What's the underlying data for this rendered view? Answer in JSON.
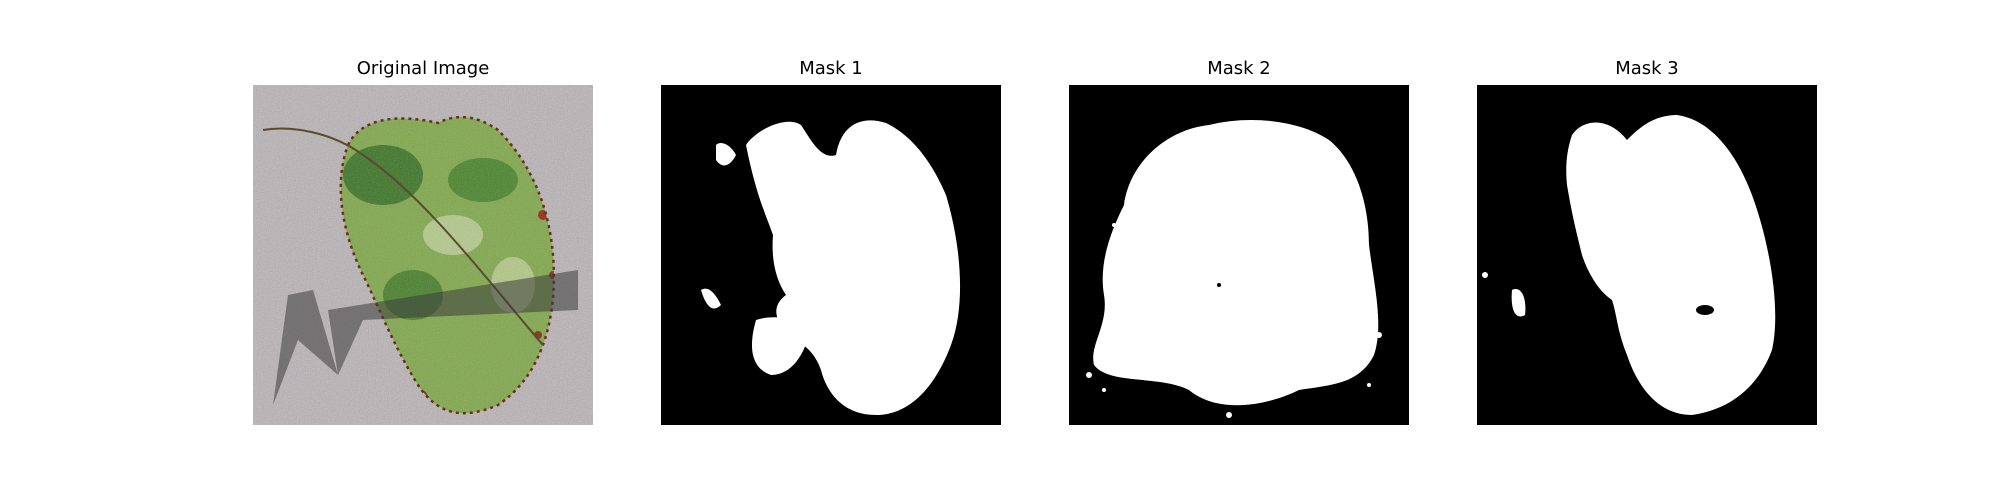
{
  "figure": {
    "panels": [
      {
        "title": "Original Image"
      },
      {
        "title": "Mask 1"
      },
      {
        "title": "Mask 2"
      },
      {
        "title": "Mask 3"
      }
    ]
  },
  "colors": {
    "background": "#ffffff",
    "mask_background": "#000000",
    "mask_foreground": "#ffffff",
    "leaf_green": "#6d9a3a",
    "noise_gray": "#b9b3b6",
    "shadow": "#4a4a4a"
  }
}
